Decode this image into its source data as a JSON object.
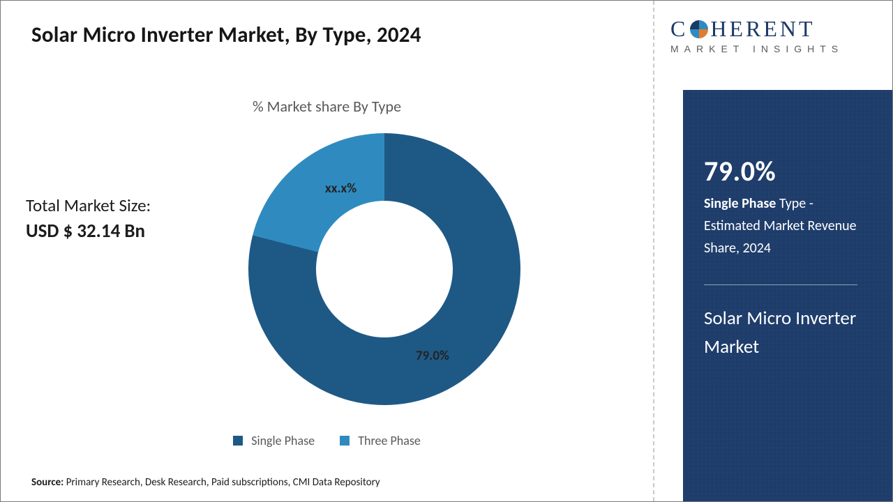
{
  "title": "Solar Micro Inverter Market, By Type, 2024",
  "chart": {
    "type": "donut",
    "title": "% Market share By Type",
    "series": [
      {
        "name": "Single Phase",
        "value": 79.0,
        "label": "79.0%",
        "color": "#1e5986"
      },
      {
        "name": "Three Phase",
        "value": 21.0,
        "label": "xx.x%",
        "color": "#2f8bbf"
      }
    ],
    "inner_radius_pct": 50,
    "start_angle_deg": 0,
    "background_color": "#ffffff",
    "label_fontsize": 19,
    "label_color": "#232323",
    "legend_position": "bottom",
    "legend_fontsize": 18,
    "legend_color": "#595959"
  },
  "market_size": {
    "label": "Total Market Size:",
    "value": "USD $ 32.14 Bn"
  },
  "legend": {
    "items": [
      {
        "swatch_color": "#1e5986",
        "label": "Single Phase"
      },
      {
        "swatch_color": "#2f8bbf",
        "label": "Three Phase"
      }
    ]
  },
  "source": {
    "prefix": "Source:",
    "text": " Primary Research, Desk Research, Paid subscriptions, CMI Data Repository"
  },
  "logo": {
    "line1_pre": "C",
    "line1_post": "HERENT",
    "line2": "MARKET INSIGHTS",
    "brand_color": "#1c3a66"
  },
  "side_panel": {
    "background_color": "#1e3d6b",
    "pct": "79.0%",
    "line1_bold": "Single Phase",
    "line1_rest": " Type - Estimated Market Revenue Share, 2024",
    "title2": "Solar Micro Inverter Market"
  }
}
